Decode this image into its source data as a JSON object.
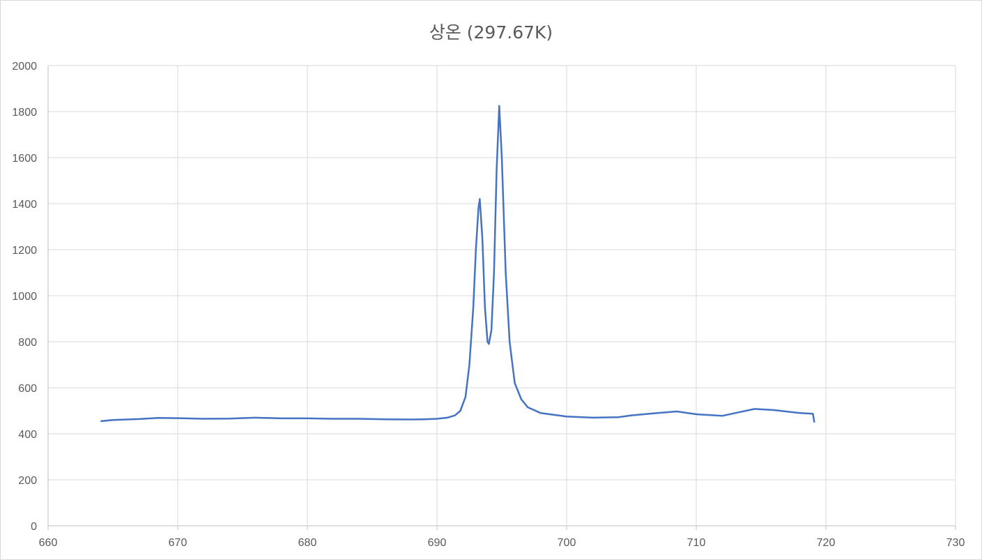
{
  "chart_data": {
    "type": "line",
    "title": "상온 (297.67K)",
    "xlabel": "",
    "ylabel": "",
    "xlim": [
      660,
      730
    ],
    "ylim": [
      0,
      2000
    ],
    "x_ticks": [
      "660",
      "670",
      "680",
      "690",
      "700",
      "710",
      "720",
      "730"
    ],
    "y_ticks": [
      "0",
      "200",
      "400",
      "600",
      "800",
      "1000",
      "1200",
      "1400",
      "1600",
      "1800",
      "2000"
    ],
    "grid": true,
    "legend": "none",
    "series": [
      {
        "color": "#4472c4",
        "points": [
          [
            664.1,
            455
          ],
          [
            665,
            460
          ],
          [
            667,
            464
          ],
          [
            668.5,
            469
          ],
          [
            670,
            468
          ],
          [
            672,
            465
          ],
          [
            674,
            466
          ],
          [
            676,
            470
          ],
          [
            678,
            467
          ],
          [
            680,
            467
          ],
          [
            682,
            465
          ],
          [
            684,
            465
          ],
          [
            686,
            463
          ],
          [
            688,
            462
          ],
          [
            689,
            463
          ],
          [
            690,
            465
          ],
          [
            690.8,
            470
          ],
          [
            691.4,
            480
          ],
          [
            691.8,
            500
          ],
          [
            692.2,
            560
          ],
          [
            692.5,
            700
          ],
          [
            692.8,
            950
          ],
          [
            693.0,
            1200
          ],
          [
            693.2,
            1380
          ],
          [
            693.3,
            1420
          ],
          [
            693.5,
            1250
          ],
          [
            693.7,
            950
          ],
          [
            693.9,
            800
          ],
          [
            694.0,
            790
          ],
          [
            694.2,
            850
          ],
          [
            694.4,
            1100
          ],
          [
            694.6,
            1550
          ],
          [
            694.8,
            1825
          ],
          [
            695.0,
            1600
          ],
          [
            695.3,
            1100
          ],
          [
            695.6,
            800
          ],
          [
            696.0,
            620
          ],
          [
            696.5,
            550
          ],
          [
            697,
            515
          ],
          [
            698,
            490
          ],
          [
            700,
            475
          ],
          [
            702,
            470
          ],
          [
            704,
            472
          ],
          [
            705,
            480
          ],
          [
            707,
            490
          ],
          [
            708.5,
            497
          ],
          [
            710,
            485
          ],
          [
            712,
            478
          ],
          [
            713,
            490
          ],
          [
            714.5,
            508
          ],
          [
            716,
            503
          ],
          [
            718,
            490
          ],
          [
            719,
            487
          ],
          [
            719.1,
            452
          ]
        ]
      }
    ]
  }
}
